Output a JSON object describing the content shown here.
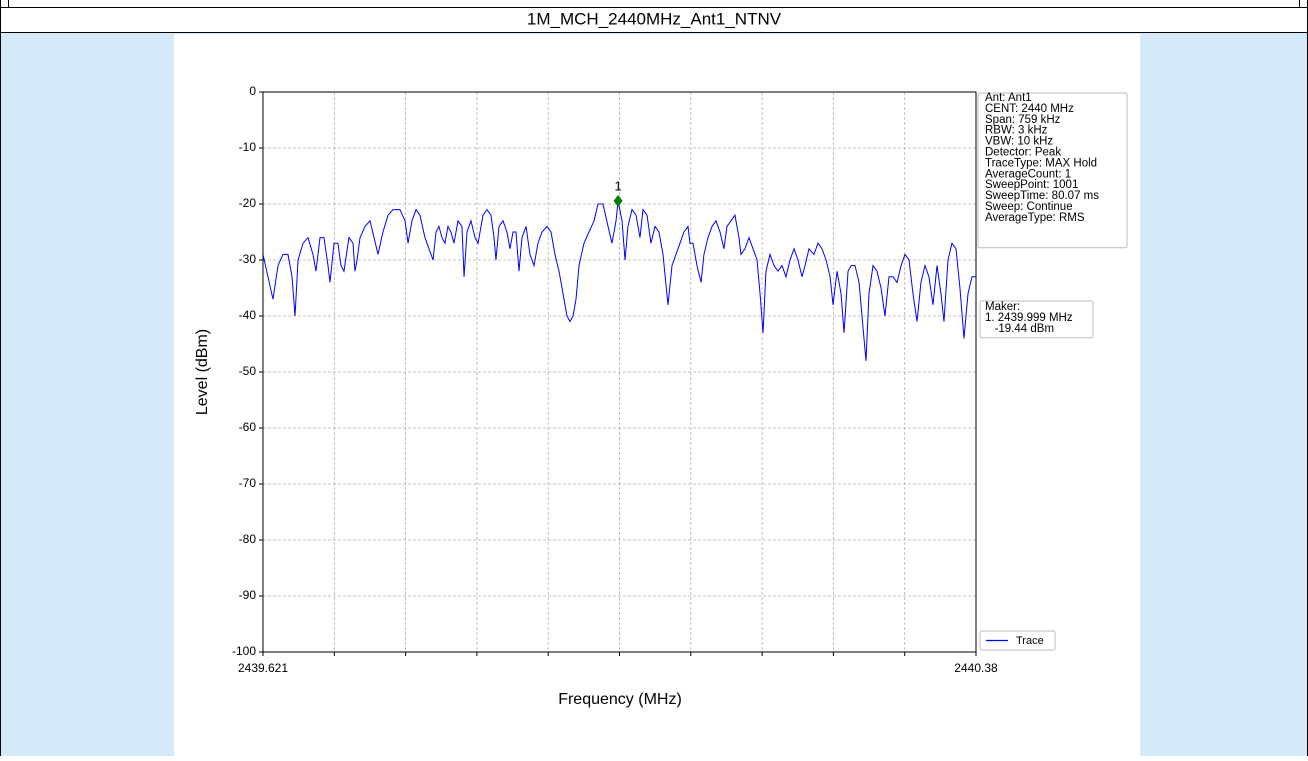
{
  "header": {
    "title": "1M_MCH_2440MHz_Ant1_NTNV"
  },
  "chart_data": {
    "type": "line",
    "xlabel": "Frequency (MHz)",
    "ylabel": "Level (dBm)",
    "xlim": [
      2439.621,
      2440.38
    ],
    "ylim": [
      -100,
      0
    ],
    "xticks": [
      2439.621,
      2440.38
    ],
    "xticks_minor": [
      2439.6969,
      2439.7728,
      2439.8487,
      2439.9246,
      2440.0005,
      2440.0764,
      2440.1523,
      2440.2282,
      2440.3041
    ],
    "yticks": [
      0,
      -10,
      -20,
      -30,
      -40,
      -50,
      -60,
      -70,
      -80,
      -90,
      -100
    ],
    "grid": true,
    "legend": "lower right",
    "x": [
      2439.621,
      2439.6263,
      2439.6316,
      2439.637,
      2439.6423,
      2439.6476,
      2439.6519,
      2439.6551,
      2439.6583,
      2439.6636,
      2439.6689,
      2439.6742,
      2439.6774,
      2439.6817,
      2439.6859,
      2439.6902,
      2439.6923,
      2439.6966,
      2439.7008,
      2439.704,
      2439.7072,
      2439.7125,
      2439.7168,
      2439.7189,
      2439.7211,
      2439.7243,
      2439.7296,
      2439.7349,
      2439.7392,
      2439.7434,
      2439.7487,
      2439.7541,
      2439.7594,
      2439.7668,
      2439.7722,
      2439.7754,
      2439.7796,
      2439.7839,
      2439.7881,
      2439.7934,
      2439.7977,
      2439.802,
      2439.8052,
      2439.8083,
      2439.8115,
      2439.8147,
      2439.8179,
      2439.8211,
      2439.8243,
      2439.8286,
      2439.8328,
      2439.835,
      2439.8382,
      2439.8424,
      2439.8467,
      2439.8499,
      2439.8552,
      2439.8594,
      2439.8637,
      2439.8669,
      2439.869,
      2439.8722,
      2439.8765,
      2439.8807,
      2439.8839,
      2439.8871,
      2439.8903,
      2439.8935,
      2439.8967,
      2439.901,
      2439.9052,
      2439.9095,
      2439.9137,
      2439.918,
      2439.9233,
      2439.9276,
      2439.9318,
      2439.9361,
      2439.9404,
      2439.9446,
      2439.9478,
      2439.951,
      2439.9542,
      2439.9574,
      2439.9627,
      2439.968,
      2439.9734,
      2439.9776,
      2439.9829,
      2439.9883,
      2439.9925,
      2439.9968,
      2439.999,
      2440.0032,
      2440.0064,
      2440.0095,
      2440.0138,
      2440.0181,
      2440.0223,
      2440.0255,
      2440.0298,
      2440.034,
      2440.0383,
      2440.0425,
      2440.0468,
      2440.0521,
      2440.0564,
      2440.0606,
      2440.0649,
      2440.0691,
      2440.0734,
      2440.0755,
      2440.0787,
      2440.083,
      2440.0873,
      2440.0904,
      2440.0947,
      2440.099,
      2440.1032,
      2440.1075,
      2440.1117,
      2440.1149,
      2440.1192,
      2440.1234,
      2440.1277,
      2440.1298,
      2440.1341,
      2440.1383,
      2440.1426,
      2440.1469,
      2440.1501,
      2440.1533,
      2440.1564,
      2440.1607,
      2440.165,
      2440.1692,
      2440.1735,
      2440.1777,
      2440.182,
      2440.1863,
      2440.1905,
      2440.1948,
      2440.198,
      2440.2022,
      2440.2075,
      2440.2118,
      2440.2161,
      2440.2204,
      2440.2247,
      2440.2278,
      2440.2321,
      2440.2363,
      2440.2395,
      2440.2438,
      2440.247,
      2440.2512,
      2440.2555,
      2440.2597,
      2440.2629,
      2440.2661,
      2440.2704,
      2440.2746,
      2440.2789,
      2440.2831,
      2440.2874,
      2440.2917,
      2440.2959,
      2440.3002,
      2440.3044,
      2440.3087,
      2440.3129,
      2440.3172,
      2440.3214,
      2440.3257,
      2440.3299,
      2440.3342,
      2440.3385,
      2440.3427,
      2440.3459,
      2440.3502,
      2440.3544,
      2440.3587,
      2440.3629,
      2440.3672,
      2440.3715,
      2440.3757,
      2440.38
    ],
    "series": [
      {
        "name": "Trace",
        "color": "#0000ff",
        "values": [
          -29,
          -33,
          -37,
          -31,
          -29,
          -29,
          -33,
          -40,
          -30,
          -27,
          -26,
          -29,
          -32,
          -26,
          -26,
          -31,
          -34,
          -27,
          -27,
          -31,
          -32,
          -26,
          -27,
          -32,
          -30,
          -26,
          -24,
          -23,
          -26,
          -29,
          -25,
          -22,
          -21,
          -21,
          -23,
          -27,
          -23,
          -21,
          -22,
          -26,
          -28,
          -30,
          -25,
          -24,
          -26,
          -27,
          -24,
          -25,
          -27,
          -23,
          -24,
          -33,
          -25,
          -23,
          -26,
          -27,
          -22,
          -21,
          -22,
          -26,
          -30,
          -24,
          -23,
          -25,
          -28,
          -25,
          -25,
          -32,
          -26,
          -24,
          -29,
          -31,
          -27,
          -25,
          -24,
          -25,
          -29,
          -32,
          -36,
          -40,
          -41,
          -40,
          -37,
          -31,
          -27,
          -25,
          -23,
          -20,
          -20,
          -24,
          -27,
          -23,
          -19.44,
          -23,
          -30,
          -24,
          -21,
          -22,
          -26,
          -21,
          -22,
          -27,
          -24,
          -25,
          -29,
          -38,
          -31,
          -29,
          -27,
          -25,
          -24,
          -27,
          -27,
          -31,
          -34,
          -29,
          -26,
          -24,
          -23,
          -25,
          -28,
          -24,
          -23,
          -22,
          -26,
          -29,
          -28,
          -26,
          -28,
          -30,
          -36,
          -43,
          -32,
          -29,
          -31,
          -32,
          -31,
          -33,
          -30,
          -28,
          -30,
          -33,
          -31,
          -28,
          -29,
          -27,
          -28,
          -30,
          -33,
          -38,
          -32,
          -36,
          -43,
          -32,
          -31,
          -31,
          -34,
          -42,
          -48,
          -36,
          -31,
          -32,
          -35,
          -40,
          -33,
          -33,
          -34,
          -31,
          -29,
          -30,
          -36,
          -41,
          -34,
          -31,
          -33,
          -38,
          -31,
          -36,
          -41,
          -30,
          -27,
          -28,
          -35,
          -44,
          -36,
          -33,
          -33
        ]
      }
    ],
    "marker": {
      "label": "1",
      "x": 2439.999,
      "y": -19.44,
      "color": "#008000"
    },
    "info_box": [
      "Ant: Ant1",
      "CENT: 2440 MHz",
      "Span: 759 kHz",
      "RBW: 3 kHz",
      "VBW: 10 kHz",
      "Detector: Peak",
      "TraceType: MAX Hold",
      "AverageCount: 1",
      "SweepPoint: 1001",
      "SweepTime: 80.07 ms",
      "Sweep: Continue",
      "AverageType: RMS"
    ],
    "marker_box": [
      "Maker:",
      "1. 2439.999 MHz",
      "   -19.44 dBm"
    ]
  }
}
